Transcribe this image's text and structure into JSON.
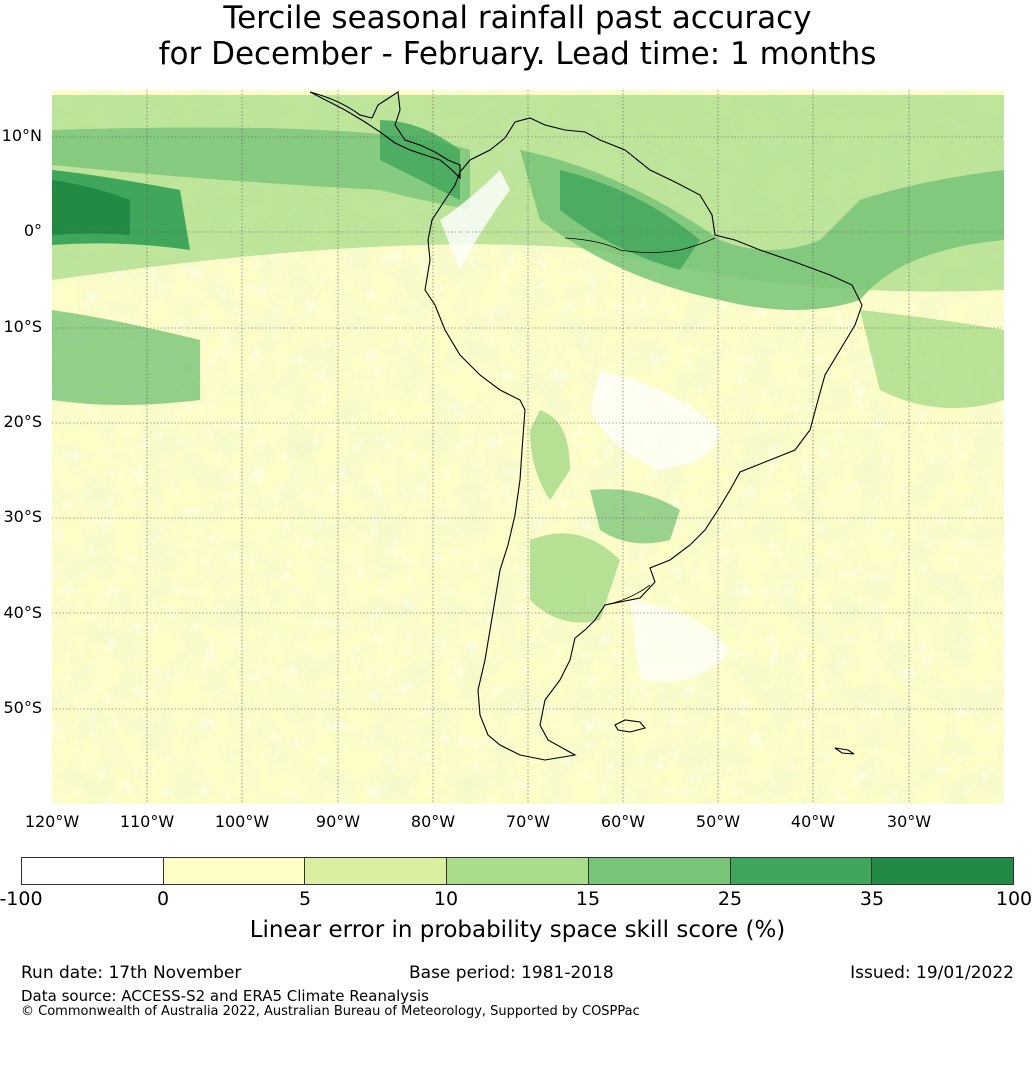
{
  "title_line1": "Tercile seasonal rainfall past accuracy",
  "title_line2": "for December - February. Lead time: 1 months",
  "map": {
    "lat_labels": [
      "10°N",
      "0°",
      "10°S",
      "20°S",
      "30°S",
      "40°S",
      "50°S"
    ],
    "lon_labels": [
      "120°W",
      "110°W",
      "100°W",
      "90°W",
      "80°W",
      "70°W",
      "60°W",
      "50°W",
      "40°W",
      "30°W"
    ],
    "lon_range": [
      -120,
      -20
    ],
    "lat_range": [
      -60,
      15
    ]
  },
  "colorbar": {
    "colors": [
      "#ffffff",
      "#fdfdc8",
      "#daf0a0",
      "#a9dc8b",
      "#78c478",
      "#3fa65b",
      "#228a44"
    ],
    "ticks": [
      "-100",
      "0",
      "5",
      "10",
      "15",
      "25",
      "35",
      "100"
    ],
    "label": "Linear error in probability space skill score (%)"
  },
  "footer": {
    "run_date": "Run date: 17th November",
    "base_period": "Base period: 1981-2018",
    "issued": "Issued: 19/01/2022",
    "data_source": "Data source: ACCESS-S2 and ERA5 Climate Reanalysis",
    "copyright": "© Commonwealth of Australia 2022, Australian Bureau of Meteorology, Supported by COSPPac"
  }
}
